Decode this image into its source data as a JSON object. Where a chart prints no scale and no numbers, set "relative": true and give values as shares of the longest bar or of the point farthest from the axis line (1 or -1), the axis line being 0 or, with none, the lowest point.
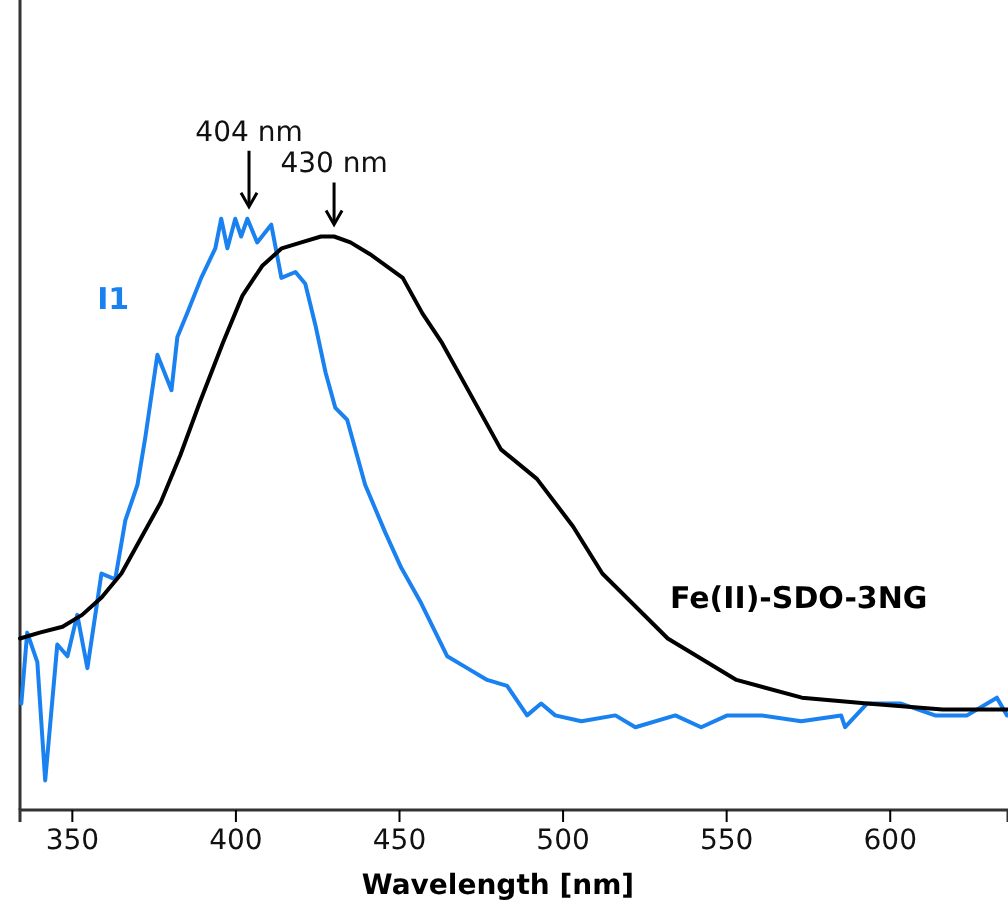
{
  "chart_data": {
    "type": "line",
    "xlabel": "Wavelength [nm]",
    "relative": true,
    "xlim": [
      334,
      636
    ],
    "xticks": [
      350,
      400,
      450,
      500,
      550,
      600
    ],
    "grid": false,
    "series": [
      {
        "name": "I1",
        "color": "#1a82f0",
        "x": [
          334.4,
          336.2,
          339.3,
          341.7,
          345.4,
          348.5,
          351.5,
          354.6,
          358.9,
          363.1,
          366.2,
          369.9,
          372.3,
          376,
          380.3,
          382.1,
          385.1,
          389.4,
          393.7,
          395.5,
          397.4,
          399.8,
          401.6,
          403.5,
          406.5,
          410.8,
          413.9,
          418.2,
          421.2,
          424.3,
          427.4,
          430.4,
          434,
          439.5,
          445.6,
          450.5,
          456.6,
          464.6,
          470.7,
          476.8,
          482.9,
          489,
          493.3,
          497.6,
          505.6,
          516,
          522.1,
          534.3,
          542.2,
          550.2,
          560.6,
          572.8,
          585,
          586.2,
          592.9,
          603.3,
          613.7,
          623.5,
          632.6,
          635.7
        ],
        "values": [
          0.18,
          0.3,
          0.25,
          0.05,
          0.28,
          0.26,
          0.33,
          0.24,
          0.4,
          0.39,
          0.49,
          0.55,
          0.63,
          0.77,
          0.71,
          0.8,
          0.84,
          0.9,
          0.95,
          1.0,
          0.95,
          1.0,
          0.97,
          1.0,
          0.96,
          0.99,
          0.9,
          0.91,
          0.89,
          0.82,
          0.74,
          0.68,
          0.66,
          0.55,
          0.47,
          0.41,
          0.35,
          0.26,
          0.24,
          0.22,
          0.21,
          0.16,
          0.18,
          0.16,
          0.15,
          0.16,
          0.14,
          0.16,
          0.14,
          0.16,
          0.16,
          0.15,
          0.16,
          0.14,
          0.18,
          0.18,
          0.16,
          0.16,
          0.19,
          0.16
        ]
      },
      {
        "name": "Fe(II)-SDO-3NG",
        "color": "#000000",
        "x": [
          334,
          340,
          347,
          353,
          359,
          365,
          371,
          377,
          383,
          389,
          396,
          402,
          408,
          414,
          420,
          426,
          430,
          435,
          441,
          451,
          457,
          463,
          469,
          475,
          481,
          492,
          503,
          512,
          532,
          553,
          573,
          593,
          616,
          636
        ],
        "values": [
          0.29,
          0.3,
          0.31,
          0.33,
          0.36,
          0.4,
          0.46,
          0.52,
          0.6,
          0.69,
          0.79,
          0.87,
          0.92,
          0.95,
          0.96,
          0.97,
          0.97,
          0.96,
          0.94,
          0.9,
          0.84,
          0.79,
          0.73,
          0.67,
          0.61,
          0.56,
          0.48,
          0.4,
          0.29,
          0.22,
          0.19,
          0.18,
          0.17,
          0.17
        ]
      }
    ],
    "annotations": [
      {
        "text": "404 nm",
        "x": 404,
        "y": 1.0
      },
      {
        "text": "430 nm",
        "x": 430,
        "y": 0.97
      }
    ]
  }
}
